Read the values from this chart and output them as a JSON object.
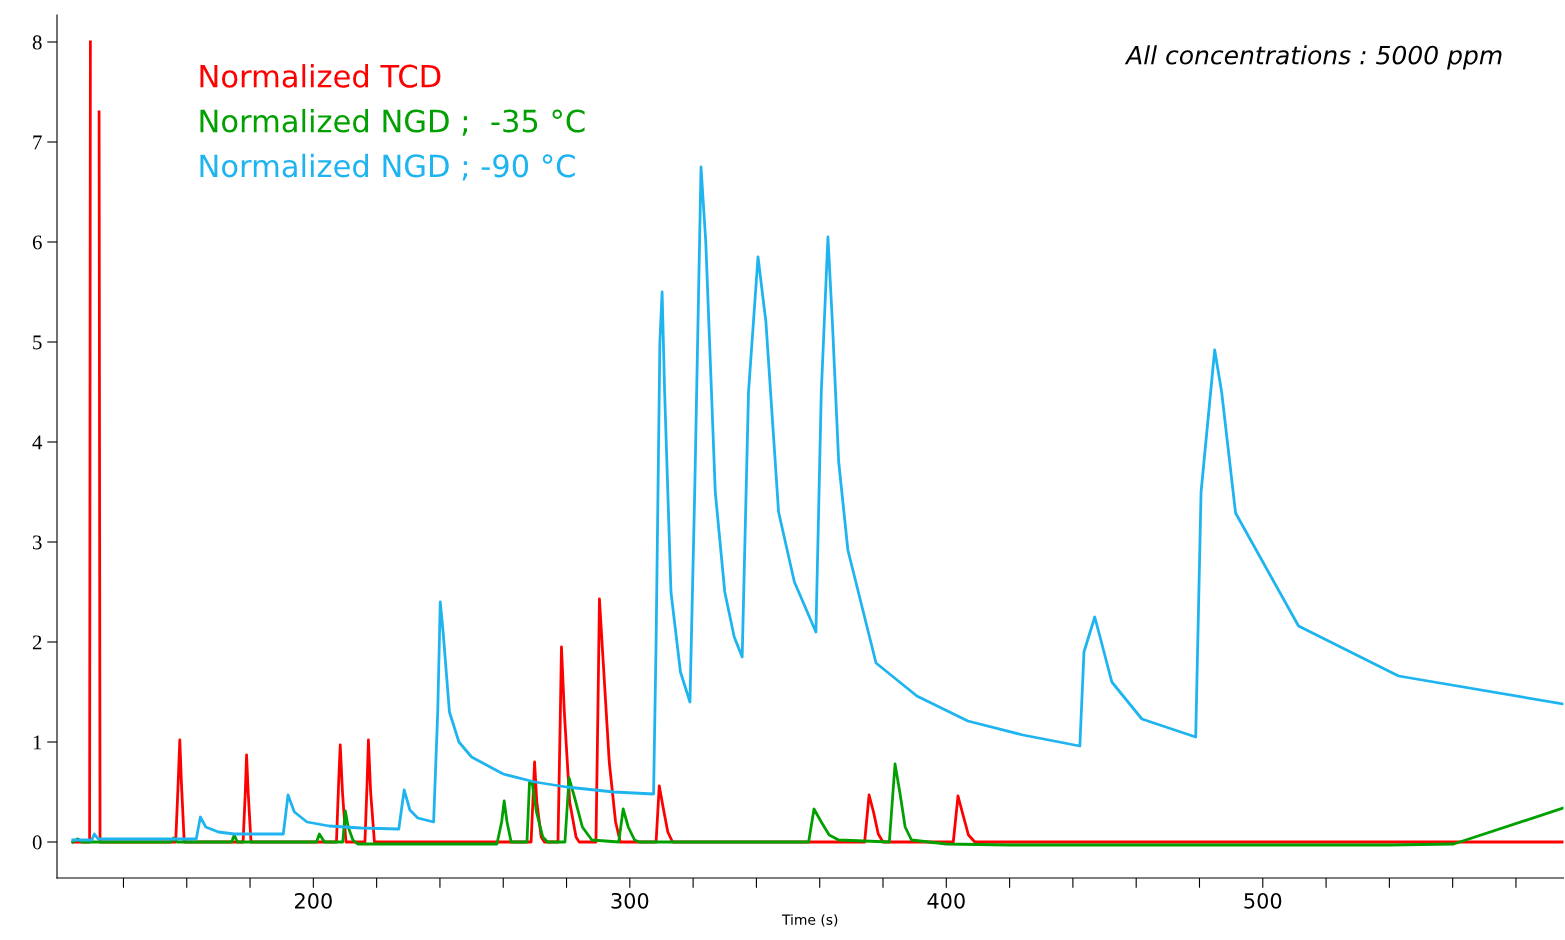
{
  "chart_data": {
    "type": "line",
    "xlabel": "Time (s)",
    "annotations": [
      "All concentrations : 5000 ppm"
    ],
    "xlim": [
      119,
      595
    ],
    "ylim": [
      -0.36,
      8.27
    ],
    "xticks": [
      {
        "value": 140,
        "label": null
      },
      {
        "value": 160,
        "label": null
      },
      {
        "value": 180,
        "label": null
      },
      200,
      {
        "value": 220,
        "label": null
      },
      {
        "value": 240,
        "label": null
      },
      {
        "value": 260,
        "label": null
      },
      {
        "value": 280,
        "label": null
      },
      300,
      {
        "value": 320,
        "label": null
      },
      {
        "value": 340,
        "label": null
      },
      {
        "value": 360,
        "label": null
      },
      {
        "value": 380,
        "label": null
      },
      400,
      {
        "value": 420,
        "label": null
      },
      {
        "value": 440,
        "label": null
      },
      {
        "value": 460,
        "label": null
      },
      {
        "value": 480,
        "label": null
      },
      500,
      {
        "value": 520,
        "label": null
      },
      {
        "value": 540,
        "label": null
      },
      {
        "value": 560,
        "label": null
      },
      {
        "value": 580,
        "label": null
      }
    ],
    "yticks": [
      0,
      1,
      2,
      3,
      4,
      5,
      6,
      7,
      8
    ],
    "grid": false,
    "legend": "top left",
    "series": [
      {
        "name": "Normalized TCD",
        "color": "#ff0000",
        "x": [
          124,
          129.3,
          129.55,
          129.6,
          132.2,
          132.3,
          132.6,
          156.5,
          157.3,
          157.8,
          158.3,
          159.2,
          177.8,
          178.5,
          178.9,
          179.4,
          180.3,
          207.3,
          208.0,
          208.5,
          209.2,
          210.3,
          216.3,
          217,
          217.4,
          218.1,
          219.3,
          268.8,
          269.5,
          269.9,
          270.6,
          272,
          273,
          277.3,
          278,
          278.4,
          279.3,
          281,
          283,
          284,
          289.3,
          290,
          290.4,
          291.4,
          293.5,
          295.5,
          297,
          308.3,
          309.3,
          310.5,
          312,
          313.5,
          374.2,
          375.6,
          377,
          378.5,
          380,
          402.2,
          403.7,
          405.2,
          407,
          409,
          595
        ],
        "values": [
          0,
          0,
          8.0,
          null,
          null,
          7.3,
          0,
          0,
          0.6,
          1.02,
          0.6,
          0,
          0,
          0.5,
          0.87,
          0.5,
          0,
          0,
          0.6,
          0.97,
          0.5,
          0,
          0,
          0.6,
          1.02,
          0.5,
          0,
          0,
          0.5,
          0.8,
          0.4,
          0.05,
          0,
          0,
          1.2,
          1.95,
          1.3,
          0.4,
          0.05,
          0,
          0,
          1.5,
          2.43,
          1.9,
          0.8,
          0.2,
          0,
          0,
          0.56,
          0.35,
          0.1,
          0,
          0,
          0.47,
          0.3,
          0.08,
          0,
          0,
          0.46,
          0.28,
          0.07,
          0,
          0
        ]
      },
      {
        "name": "Normalized NGD ;  -35 °C",
        "color": "#00a000",
        "x": [
          124,
          125.5,
          127,
          155,
          155.8,
          157,
          174.2,
          175,
          176,
          201,
          201.9,
          203.5,
          209.3,
          210.1,
          211,
          212.5,
          214,
          258,
          259.5,
          260.3,
          261.2,
          262.5,
          267.5,
          268.3,
          269.2,
          270.5,
          272.5,
          274,
          279.5,
          280.8,
          282.5,
          285,
          288,
          296.5,
          297.9,
          299.5,
          301.5,
          303,
          356.5,
          358.2,
          360.5,
          363,
          366,
          382,
          383.8,
          385.3,
          387,
          389,
          400,
          420,
          540,
          560.3,
          595
        ],
        "values": [
          0,
          0.03,
          0,
          0,
          0.04,
          0,
          0,
          0.07,
          0,
          0,
          0.08,
          0,
          0,
          0.31,
          0.15,
          0.02,
          -0.02,
          -0.02,
          0.2,
          0.41,
          0.2,
          0,
          0,
          0.6,
          0.58,
          0.3,
          0.05,
          0,
          0,
          0.64,
          0.45,
          0.15,
          0.02,
          0,
          0.33,
          0.15,
          0.02,
          0,
          0,
          0.33,
          0.2,
          0.07,
          0.02,
          0,
          0.78,
          0.5,
          0.15,
          0.02,
          -0.02,
          -0.03,
          -0.03,
          -0.02,
          0.34
        ]
      },
      {
        "name": "Normalized NGD ; -90 °C",
        "color": "#1eb4f0",
        "x": [
          124,
          130,
          130.8,
          132,
          163,
          164.3,
          166,
          170,
          175,
          190.5,
          192,
          194,
          198,
          205,
          215,
          227,
          228.7,
          230.5,
          233,
          238,
          239.3,
          240.1,
          241,
          243,
          246,
          250,
          260,
          270,
          280,
          295,
          307.5,
          308.3,
          309.5,
          310.2,
          311,
          313,
          316,
          319,
          320.5,
          322.5,
          324,
          327,
          330,
          333,
          335.5,
          337.5,
          340.5,
          343,
          347,
          352,
          358.8,
          360.5,
          362.6,
          364,
          366,
          368.9,
          377.8,
          390.7,
          406.8,
          424.2,
          442.2,
          443.5,
          446.9,
          449,
          452.3,
          461.8,
          478.8,
          480.5,
          484.8,
          487,
          491.4,
          511.3,
          542.9,
          595
        ],
        "values": [
          0.02,
          0.02,
          0.08,
          0.03,
          0.03,
          0.25,
          0.15,
          0.1,
          0.08,
          0.08,
          0.47,
          0.3,
          0.2,
          0.16,
          0.14,
          0.13,
          0.52,
          0.32,
          0.24,
          0.2,
          1.3,
          2.4,
          2.1,
          1.3,
          1.0,
          0.85,
          0.68,
          0.6,
          0.55,
          0.5,
          0.48,
          2.0,
          5.0,
          5.5,
          4.5,
          2.5,
          1.7,
          1.4,
          3.5,
          6.75,
          6.0,
          3.5,
          2.5,
          2.05,
          1.85,
          4.5,
          5.85,
          5.2,
          3.3,
          2.6,
          2.1,
          4.5,
          6.05,
          5.2,
          3.8,
          2.92,
          1.79,
          1.46,
          1.21,
          1.07,
          0.96,
          1.9,
          2.25,
          2.0,
          1.6,
          1.23,
          1.05,
          3.5,
          4.92,
          4.5,
          3.29,
          2.16,
          1.66,
          1.38
        ]
      }
    ]
  }
}
